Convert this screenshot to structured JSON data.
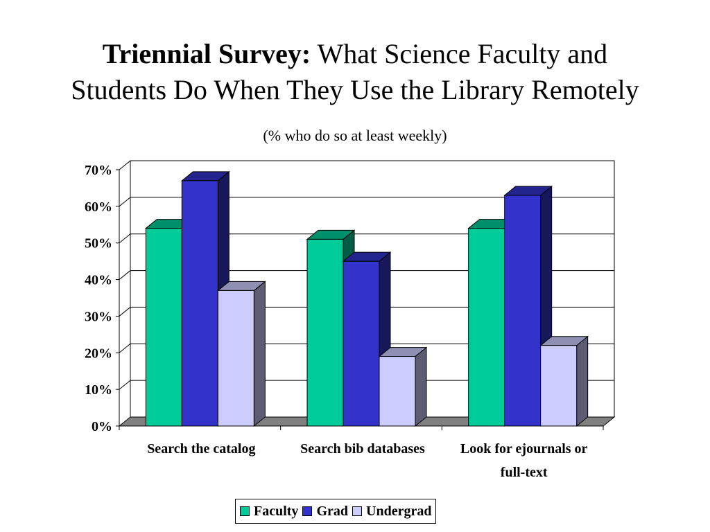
{
  "title": {
    "bold": "Triennial Survey:",
    "rest_line1": "What Science Faculty and",
    "line2": "Students Do When They Use the Library Remotely"
  },
  "subtitle": "(% who do so at least weekly)",
  "chart_data": {
    "type": "bar",
    "title": "Triennial Survey: What Science Faculty and Students Do When They Use the Library Remotely",
    "subtitle": "(% who do so at least weekly)",
    "categories": [
      [
        "Search the catalog"
      ],
      [
        "Search bib databases"
      ],
      [
        "Look for ejournals or",
        "full-text"
      ]
    ],
    "series": [
      {
        "name": "Faculty",
        "values": [
          54,
          51,
          54
        ],
        "color": "#00CC99"
      },
      {
        "name": "Grad",
        "values": [
          67,
          45,
          63
        ],
        "color": "#3333CC"
      },
      {
        "name": "Undergrad",
        "values": [
          37,
          19,
          22
        ],
        "color": "#CCCCFF"
      }
    ],
    "ylim": [
      0,
      70
    ],
    "yticks": [
      0,
      10,
      20,
      30,
      40,
      50,
      60,
      70
    ],
    "ytick_suffix": "%",
    "grid": true,
    "three_d": true,
    "legend_position": "bottom"
  }
}
